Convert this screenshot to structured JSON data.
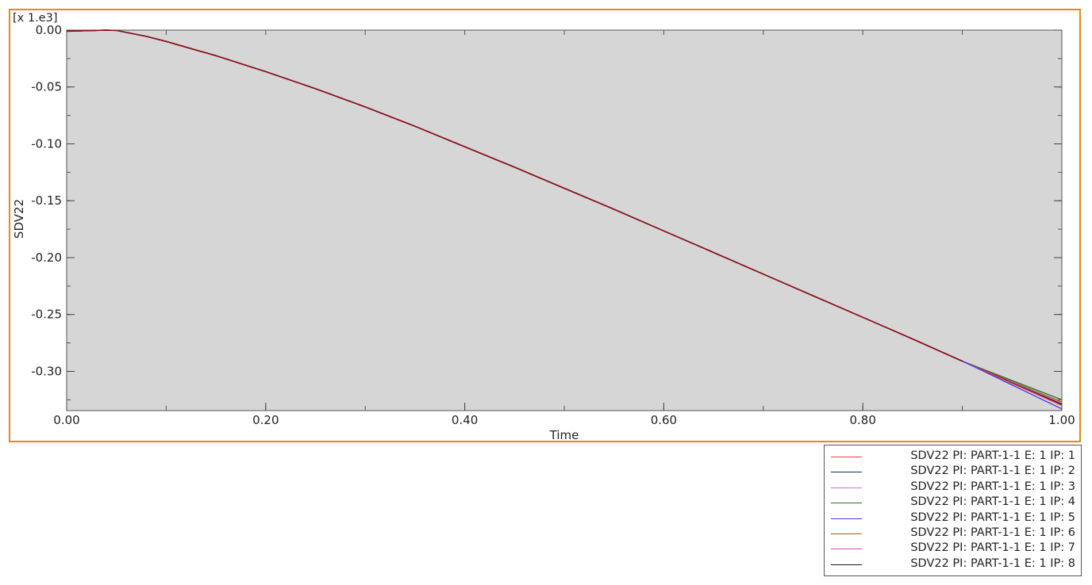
{
  "chart_data": {
    "type": "line",
    "xlabel": "Time",
    "ylabel": "SDV22",
    "scale_note": "[x 1.e3]",
    "xlim": [
      0.0,
      1.0
    ],
    "ylim": [
      -0.3345,
      0.0
    ],
    "x_ticks": [
      0.0,
      0.2,
      0.4,
      0.6,
      0.8,
      1.0
    ],
    "x_tick_labels": [
      "0.00",
      "0.20",
      "0.40",
      "0.60",
      "0.80",
      "1.00"
    ],
    "y_ticks": [
      0.0,
      -0.05,
      -0.1,
      -0.15,
      -0.2,
      -0.25,
      -0.3
    ],
    "y_tick_labels": [
      "0.00",
      "-0.05",
      "-0.10",
      "-0.15",
      "-0.20",
      "-0.25",
      "-0.30"
    ],
    "plot_background": "#d6d6d6",
    "legend_position": "bottom-right, outside plot",
    "x": [
      0.0,
      0.02,
      0.04,
      0.05,
      0.06,
      0.08,
      0.1,
      0.15,
      0.2,
      0.25,
      0.3,
      0.35,
      0.4,
      0.45,
      0.5,
      0.55,
      0.6,
      0.65,
      0.7,
      0.75,
      0.8,
      0.85,
      0.9,
      0.92,
      0.94,
      0.96,
      0.98,
      1.0
    ],
    "series": [
      {
        "name": "SDV22 PI: PART-1-1 E: 1 IP: 1",
        "color": "#ff3b3b",
        "y": [
          -0.001,
          -0.0005,
          0.0,
          -0.0003,
          -0.002,
          -0.0055,
          -0.01,
          -0.0225,
          -0.0365,
          -0.0515,
          -0.0675,
          -0.0845,
          -0.1025,
          -0.1205,
          -0.139,
          -0.1575,
          -0.1765,
          -0.1955,
          -0.2145,
          -0.2335,
          -0.2525,
          -0.2715,
          -0.291,
          -0.2988,
          -0.3066,
          -0.3144,
          -0.3222,
          -0.33
        ]
      },
      {
        "name": "SDV22 PI: PART-1-1 E: 1 IP: 2",
        "color": "#0f2f4f",
        "y": [
          -0.001,
          -0.0005,
          0.0,
          -0.0003,
          -0.002,
          -0.0055,
          -0.01,
          -0.0225,
          -0.0365,
          -0.0515,
          -0.0675,
          -0.0845,
          -0.1025,
          -0.1205,
          -0.139,
          -0.1575,
          -0.1765,
          -0.1955,
          -0.2145,
          -0.2335,
          -0.2525,
          -0.2715,
          -0.291,
          -0.2986,
          -0.3062,
          -0.3138,
          -0.3214,
          -0.329
        ]
      },
      {
        "name": "SDV22 PI: PART-1-1 E: 1 IP: 3",
        "color": "#c27ad8",
        "y": [
          -0.001,
          -0.0005,
          0.0,
          -0.0003,
          -0.002,
          -0.0055,
          -0.01,
          -0.0225,
          -0.0365,
          -0.0515,
          -0.0675,
          -0.0845,
          -0.1025,
          -0.1205,
          -0.139,
          -0.1575,
          -0.1765,
          -0.1955,
          -0.2145,
          -0.2335,
          -0.2525,
          -0.2715,
          -0.291,
          -0.2984,
          -0.3058,
          -0.3132,
          -0.3206,
          -0.328
        ]
      },
      {
        "name": "SDV22 PI: PART-1-1 E: 1 IP: 4",
        "color": "#1e7a1e",
        "y": [
          -0.001,
          -0.0005,
          0.0,
          -0.0003,
          -0.002,
          -0.0055,
          -0.01,
          -0.0225,
          -0.0365,
          -0.0515,
          -0.0675,
          -0.0845,
          -0.1025,
          -0.1205,
          -0.139,
          -0.1575,
          -0.1765,
          -0.1955,
          -0.2145,
          -0.2335,
          -0.2525,
          -0.2715,
          -0.291,
          -0.2978,
          -0.3046,
          -0.3114,
          -0.3182,
          -0.325
        ]
      },
      {
        "name": "SDV22 PI: PART-1-1 E: 1 IP: 5",
        "color": "#3a3af0",
        "y": [
          -0.001,
          -0.0005,
          0.0,
          -0.0003,
          -0.002,
          -0.0055,
          -0.01,
          -0.0225,
          -0.0365,
          -0.0515,
          -0.0675,
          -0.0845,
          -0.1025,
          -0.1205,
          -0.139,
          -0.1575,
          -0.1765,
          -0.1955,
          -0.2145,
          -0.2335,
          -0.2525,
          -0.2715,
          -0.291,
          -0.2994,
          -0.3078,
          -0.3162,
          -0.3246,
          -0.333
        ]
      },
      {
        "name": "SDV22 PI: PART-1-1 E: 1 IP: 6",
        "color": "#b5541e",
        "y": [
          -0.001,
          -0.0005,
          0.0,
          -0.0003,
          -0.002,
          -0.0055,
          -0.01,
          -0.0225,
          -0.0365,
          -0.0515,
          -0.0675,
          -0.0845,
          -0.1025,
          -0.1205,
          -0.139,
          -0.1575,
          -0.1765,
          -0.1955,
          -0.2145,
          -0.2335,
          -0.2525,
          -0.2715,
          -0.291,
          -0.2982,
          -0.3054,
          -0.3126,
          -0.3198,
          -0.327
        ]
      },
      {
        "name": "SDV22 PI: PART-1-1 E: 1 IP: 7",
        "color": "#e040d8",
        "y": [
          -0.001,
          -0.0005,
          0.0,
          -0.0003,
          -0.002,
          -0.0055,
          -0.01,
          -0.0225,
          -0.0365,
          -0.0515,
          -0.0675,
          -0.0845,
          -0.1025,
          -0.1205,
          -0.139,
          -0.1575,
          -0.1765,
          -0.1955,
          -0.2145,
          -0.2335,
          -0.2525,
          -0.2715,
          -0.291,
          -0.2988,
          -0.3066,
          -0.3144,
          -0.3222,
          -0.33
        ]
      },
      {
        "name": "SDV22 PI: PART-1-1 E: 1 IP: 8",
        "color": "#151515",
        "y": [
          -0.001,
          -0.0005,
          0.0,
          -0.0003,
          -0.002,
          -0.0055,
          -0.01,
          -0.0225,
          -0.0365,
          -0.0515,
          -0.0675,
          -0.0845,
          -0.1025,
          -0.1205,
          -0.139,
          -0.1575,
          -0.1765,
          -0.1955,
          -0.2145,
          -0.2335,
          -0.2525,
          -0.2715,
          -0.291,
          -0.2986,
          -0.3062,
          -0.3138,
          -0.3214,
          -0.329
        ]
      }
    ],
    "top_curve_color": "#8b0f0f"
  }
}
